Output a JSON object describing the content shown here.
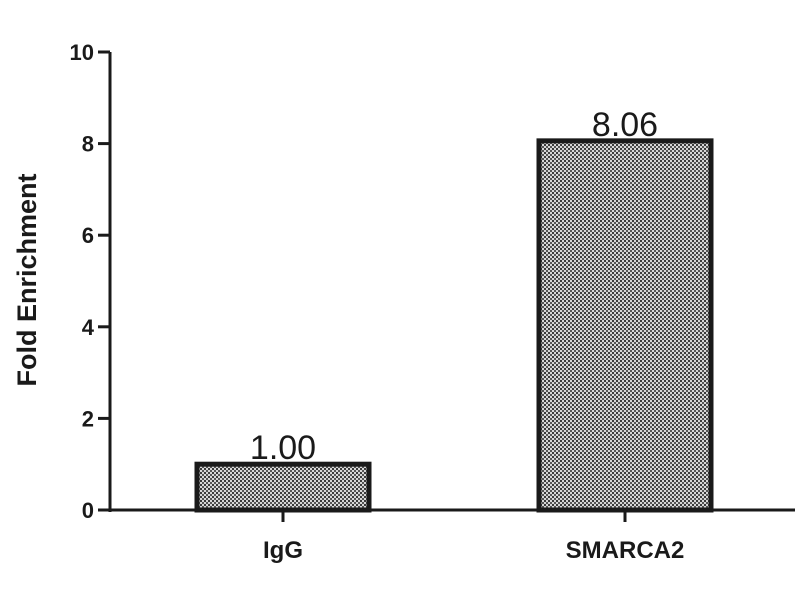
{
  "chart_data": {
    "type": "bar",
    "categories": [
      "IgG",
      "SMARCA2"
    ],
    "values": [
      1.0,
      8.06
    ],
    "data_labels": [
      "1.00",
      "8.06"
    ],
    "title": "",
    "xlabel": "",
    "ylabel": "Fold Enrichment",
    "ylim": [
      0,
      10
    ],
    "yticks": [
      "0",
      "2",
      "4",
      "6",
      "8",
      "10"
    ],
    "grid": false,
    "legend": "none",
    "bar_fill": "#9a9a9a",
    "bar_pattern": "stipple",
    "bar_edge": "#1a1a1a"
  }
}
